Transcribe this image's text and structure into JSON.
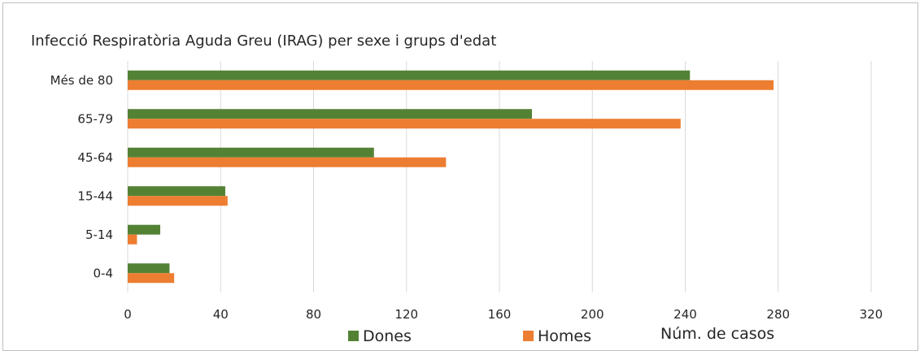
{
  "chart_data": {
    "type": "bar",
    "orientation": "horizontal",
    "title": "Infecció Respiratòria Aguda Greu (IRAG) per sexe i grups d'edat",
    "categories": [
      "Més de 80",
      "65-79",
      "45-64",
      "15-44",
      "5-14",
      "0-4"
    ],
    "series": [
      {
        "name": "Dones",
        "color": "#548235",
        "values": [
          242,
          174,
          106,
          42,
          14,
          18
        ]
      },
      {
        "name": "Homes",
        "color": "#ED7D31",
        "values": [
          278,
          238,
          137,
          43,
          4,
          20
        ]
      }
    ],
    "xlim": [
      0,
      320
    ],
    "xticks": [
      "0",
      "40",
      "80",
      "120",
      "160",
      "200",
      "240",
      "280",
      "320"
    ],
    "xlabel": "Núm. de casos",
    "ylabel": "",
    "grid": "vertical",
    "legend_position": "bottom"
  }
}
